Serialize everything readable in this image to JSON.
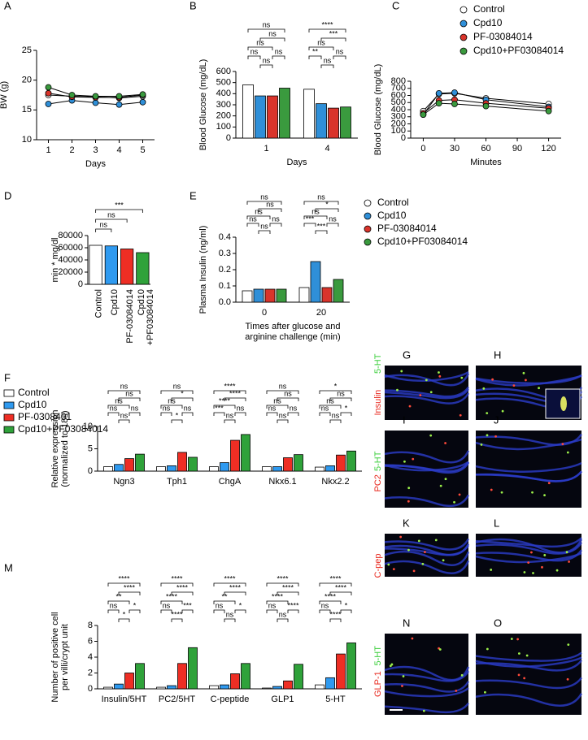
{
  "chart_data": [
    {
      "panel": "A",
      "type": "line",
      "ylabel": "BW (g)",
      "xlabel": "Days",
      "x": [
        1,
        2,
        3,
        4,
        5
      ],
      "xlim": [
        0.5,
        5.5
      ],
      "xticks": [
        1,
        2,
        3,
        4,
        5
      ],
      "ylim": [
        10,
        25
      ],
      "yticks": [
        10,
        15,
        20,
        25
      ],
      "series": [
        {
          "color": "#ffffff",
          "values": [
            17.5,
            17.3,
            17.2,
            17.0,
            17.3
          ]
        },
        {
          "color": "#2f8fd8",
          "values": [
            16.0,
            16.6,
            16.2,
            15.9,
            16.3
          ]
        },
        {
          "color": "#d9342b",
          "values": [
            17.8,
            17.2,
            17.1,
            17.1,
            17.5
          ]
        },
        {
          "color": "#3a9a3e",
          "values": [
            18.8,
            17.5,
            17.3,
            17.3,
            17.6
          ]
        }
      ]
    },
    {
      "panel": "B",
      "type": "grouped_bar",
      "ylabel": "Blood Glucose (mg/dL)",
      "xlabel": "Days",
      "categories": [
        "1",
        "4"
      ],
      "ylim": [
        0,
        600
      ],
      "yticks": [
        0,
        100,
        200,
        300,
        400,
        500,
        600
      ],
      "series": [
        {
          "color": "#ffffff",
          "values": [
            480,
            440
          ]
        },
        {
          "color": "#2f8fd8",
          "values": [
            380,
            310
          ]
        },
        {
          "color": "#d9342b",
          "values": [
            380,
            270
          ]
        },
        {
          "color": "#3a9a3e",
          "values": [
            450,
            280
          ]
        }
      ],
      "significance": [
        [
          "ns",
          "ns",
          "ns",
          "ns",
          "ns",
          "ns"
        ],
        [
          "****",
          "***",
          "ns",
          "**",
          "ns",
          "ns"
        ]
      ]
    },
    {
      "panel": "C",
      "type": "line",
      "ylabel": "Blood Glucose (mg/dL)",
      "xlabel": "Minutes",
      "x": [
        0,
        15,
        30,
        60,
        120
      ],
      "xlim": [
        -12,
        132
      ],
      "xticks": [
        0,
        30,
        60,
        90,
        120
      ],
      "ylim": [
        0,
        800
      ],
      "yticks": [
        0,
        100,
        200,
        300,
        400,
        500,
        600,
        700,
        800
      ],
      "series": [
        {
          "name": "Control",
          "color": "#ffffff",
          "values": [
            380,
            620,
            630,
            560,
            480
          ]
        },
        {
          "name": "Cpd10",
          "color": "#2f8fd8",
          "values": [
            330,
            630,
            640,
            540,
            440
          ]
        },
        {
          "name": "PF-03084014",
          "color": "#d9342b",
          "values": [
            350,
            530,
            540,
            490,
            420
          ]
        },
        {
          "name": "Cpd10+PF03084014",
          "color": "#3a9a3e",
          "values": [
            330,
            490,
            480,
            450,
            380
          ]
        }
      ]
    },
    {
      "panel": "D",
      "type": "bar",
      "ylabel": "min * mg/dl",
      "categories": [
        [
          "Control"
        ],
        [
          "Cpd10"
        ],
        [
          "PF-03084014"
        ],
        [
          "Cpd10",
          "+PF03084014"
        ]
      ],
      "values": [
        64000,
        63000,
        58000,
        52000
      ],
      "colors": [
        "#ffffff",
        "#2f9af0",
        "#ee2e24",
        "#2fa23a"
      ],
      "ylim": [
        0,
        80000
      ],
      "yticks": [
        0,
        20000,
        40000,
        60000,
        80000
      ],
      "significance": [
        "***",
        "ns",
        "ns"
      ]
    },
    {
      "panel": "E",
      "type": "grouped_bar",
      "ylabel": "Plasma Insulin (ng/ml)",
      "xlabel": [
        "Times after glucose and",
        "arginine challenge (min)"
      ],
      "categories": [
        "0",
        "20"
      ],
      "ylim": [
        0,
        0.4
      ],
      "yticks": [
        {
          "value": 0,
          "label": "0.0"
        },
        0.1,
        0.2,
        0.3,
        0.4
      ],
      "series": [
        {
          "name": "Control",
          "color": "#ffffff",
          "values": [
            0.07,
            0.09
          ]
        },
        {
          "name": "Cpd10",
          "color": "#2f8fd8",
          "values": [
            0.08,
            0.25
          ]
        },
        {
          "name": "PF-03084014",
          "color": "#d9342b",
          "values": [
            0.08,
            0.09
          ]
        },
        {
          "name": "Cpd10+PF03084014",
          "color": "#3a9a3e",
          "values": [
            0.08,
            0.14
          ]
        }
      ],
      "significance": [
        [
          "ns",
          "ns",
          "ns",
          "ns",
          "ns",
          "ns"
        ],
        [
          "ns",
          "*",
          "ns",
          "***",
          "ns",
          "***"
        ]
      ]
    },
    {
      "panel": "F",
      "type": "grouped_bar",
      "ylabel": [
        "Relative expression",
        "(normalized to 18s)"
      ],
      "categories": [
        "Ngn3",
        "Tph1",
        "ChgA",
        "Nkx6.1",
        "Nkx2.2"
      ],
      "ylim": [
        0,
        10
      ],
      "yticks": [
        0,
        5,
        10
      ],
      "series": [
        {
          "name": "Control",
          "color": "#ffffff",
          "values": [
            1.0,
            1.0,
            1.0,
            1.0,
            0.9
          ]
        },
        {
          "name": "Cpd10",
          "color": "#2f9af0",
          "values": [
            1.5,
            1.2,
            1.9,
            1.0,
            1.2
          ]
        },
        {
          "name": "PF-0308401",
          "color": "#ee2e24",
          "values": [
            2.8,
            4.2,
            6.9,
            3.0,
            3.6
          ]
        },
        {
          "name": "Cpd10+PF03084014",
          "color": "#2fa23a",
          "values": [
            3.8,
            3.1,
            8.2,
            3.7,
            4.5
          ]
        }
      ],
      "significance": [
        [
          "ns",
          "ns",
          "ns",
          "ns",
          "ns",
          "ns"
        ],
        [
          "ns",
          "*",
          "ns",
          "ns",
          "ns",
          "*"
        ],
        [
          "****",
          "****",
          "****",
          "***",
          "ns",
          "ns"
        ],
        [
          "ns",
          "ns",
          "ns",
          "ns",
          "ns",
          "ns"
        ],
        [
          "*",
          "ns",
          "ns",
          "ns",
          "*",
          "ns"
        ]
      ]
    },
    {
      "panel": "M",
      "type": "grouped_bar",
      "ylabel": [
        "Number of positive cell",
        "per villi/crypt unit"
      ],
      "categories": [
        "Insulin/5HT",
        "PC2/5HT",
        "C-peptide",
        "GLP1",
        "5-HT"
      ],
      "ylim": [
        0,
        8
      ],
      "yticks": [
        0,
        2,
        4,
        6,
        8
      ],
      "series": [
        {
          "color": "#ffffff",
          "values": [
            0.2,
            0.2,
            0.4,
            0.1,
            0.5
          ]
        },
        {
          "color": "#2f9af0",
          "values": [
            0.6,
            0.4,
            0.5,
            0.3,
            1.4
          ]
        },
        {
          "color": "#ee2e24",
          "values": [
            2.0,
            3.2,
            1.9,
            1.0,
            4.4
          ]
        },
        {
          "color": "#2fa23a",
          "values": [
            3.2,
            5.2,
            3.2,
            3.1,
            5.8
          ]
        }
      ],
      "significance": [
        [
          "****",
          "****",
          "**",
          "ns",
          "*",
          "*"
        ],
        [
          "****",
          "****",
          "****",
          "ns",
          "***",
          "****"
        ],
        [
          "****",
          "****",
          "**",
          "ns",
          "*",
          "ns"
        ],
        [
          "****",
          "****",
          "****",
          "ns",
          "****",
          "ns"
        ],
        [
          "****",
          "****",
          "****",
          "ns",
          "*",
          "****"
        ]
      ]
    }
  ],
  "image_panels": [
    {
      "panel": "G",
      "stains": [
        {
          "label": "Insulin",
          "color": "#e8281e"
        },
        {
          "label": "5-HT",
          "color": "#3ccf3c"
        }
      ]
    },
    {
      "panel": "H"
    },
    {
      "panel": "I",
      "stains": [
        {
          "label": "PC2",
          "color": "#e8281e"
        },
        {
          "label": "5-HT",
          "color": "#3ccf3c"
        }
      ]
    },
    {
      "panel": "J"
    },
    {
      "panel": "K",
      "stains": [
        {
          "label": "C-pep",
          "color": "#e8281e"
        }
      ]
    },
    {
      "panel": "L"
    },
    {
      "panel": "N",
      "stains": [
        {
          "label": "GLP-1",
          "color": "#e8281e"
        },
        {
          "label": "5-HT",
          "color": "#3ccf3c"
        }
      ]
    },
    {
      "panel": "O"
    }
  ]
}
